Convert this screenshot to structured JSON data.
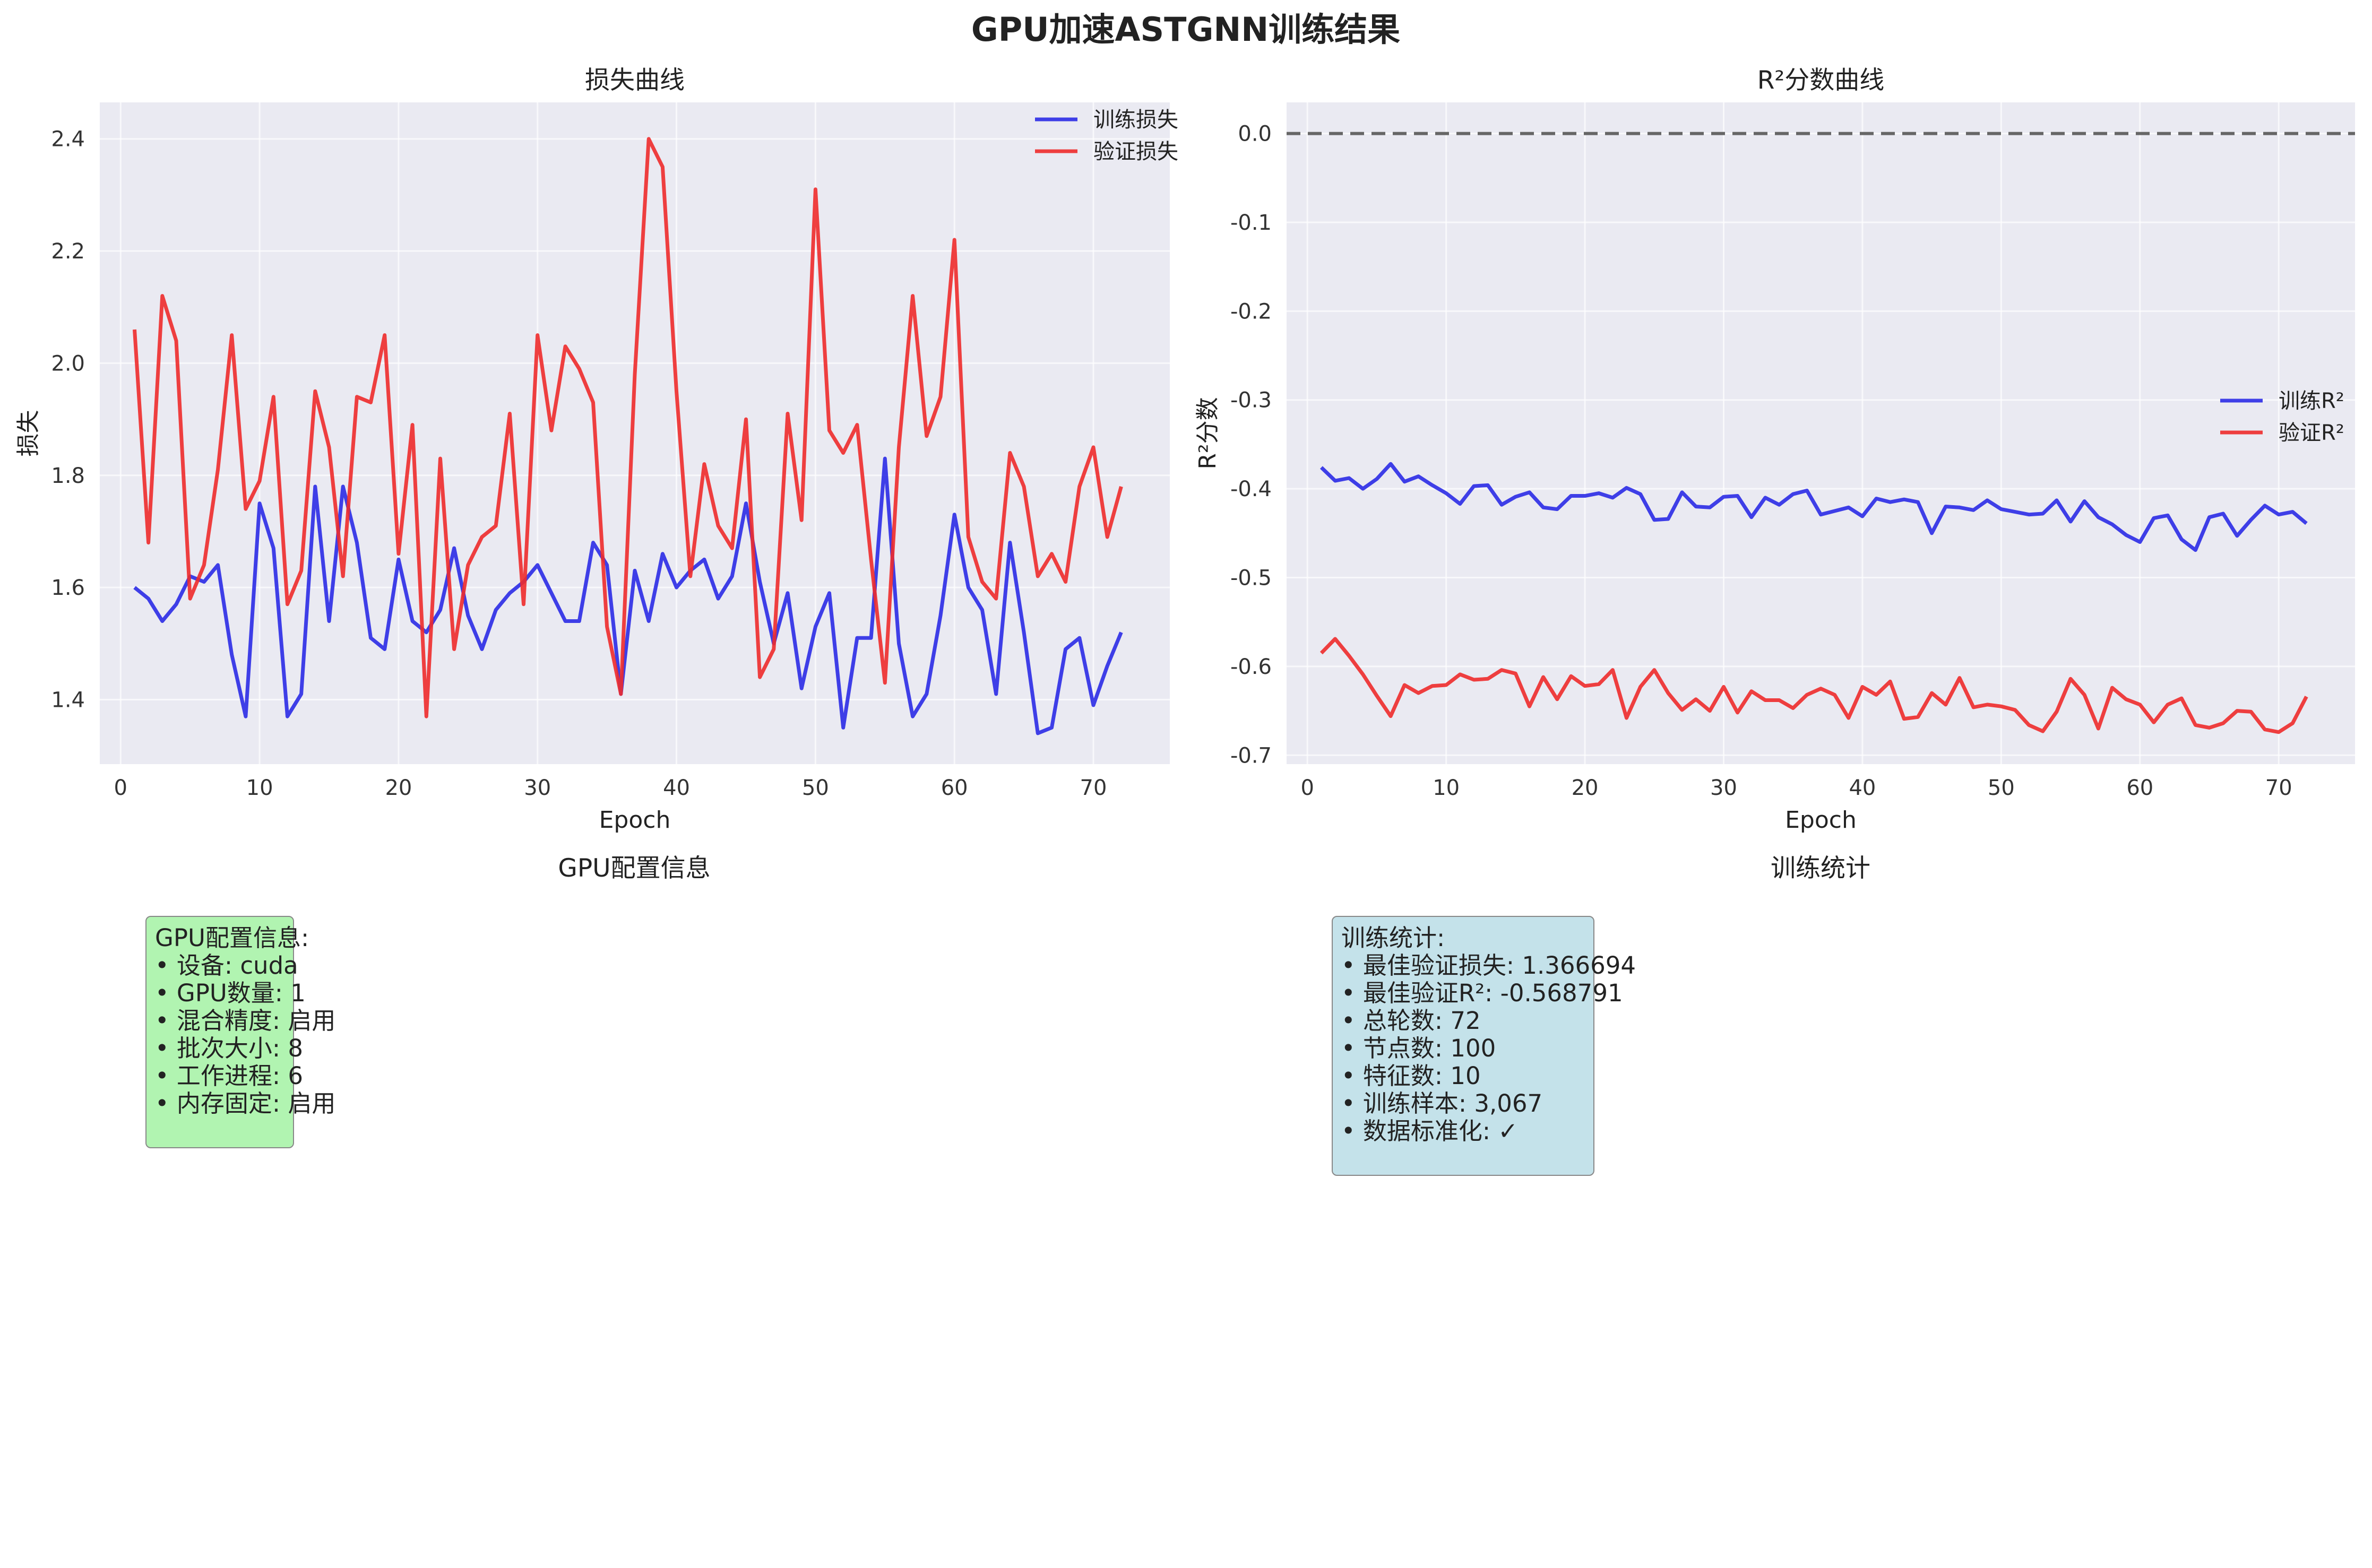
{
  "figure": {
    "title": "GPU加速ASTGNN训练结果"
  },
  "colors": {
    "train": "#2b2be6",
    "val": "#ee2b2b",
    "plot_bg": "#eaeaf2",
    "grid": "#ffffff",
    "zero_line": "#666666",
    "gpu_box_bg": "#b1f4b1",
    "stats_box_bg": "#c4e2ea"
  },
  "gpu_panel": {
    "title": "GPU配置信息",
    "lines": [
      "GPU配置信息:",
      "• 设备: cuda",
      "• GPU数量: 1",
      "• 混合精度: 启用",
      "• 批次大小: 8",
      "• 工作进程: 6",
      "• 内存固定: 启用"
    ]
  },
  "stats_panel": {
    "title": "训练统计",
    "lines": [
      "训练统计:",
      "• 最佳验证损失: 1.366694",
      "• 最佳验证R²: -0.568791",
      "• 总轮数: 72",
      "• 节点数: 100",
      "• 特征数: 10",
      "• 训练样本: 3,067",
      "• 数据标准化: ✓"
    ]
  },
  "chart_data": [
    {
      "type": "line",
      "title": "损失曲线",
      "xlabel": "Epoch",
      "ylabel": "损失",
      "xlim": [
        -1.5,
        75.5
      ],
      "ylim": [
        1.285,
        2.465
      ],
      "xticks": [
        0,
        10,
        20,
        30,
        40,
        50,
        60,
        70
      ],
      "yticks": [
        1.4,
        1.6,
        1.8,
        2.0,
        2.2,
        2.4
      ],
      "ytick_labels": [
        "1.4",
        "1.6",
        "1.8",
        "2.0",
        "2.2",
        "2.4"
      ],
      "grid": true,
      "legend": "top-right",
      "x": [
        1,
        2,
        3,
        4,
        5,
        6,
        7,
        8,
        9,
        10,
        11,
        12,
        13,
        14,
        15,
        16,
        17,
        18,
        19,
        20,
        21,
        22,
        23,
        24,
        25,
        26,
        27,
        28,
        29,
        30,
        31,
        32,
        33,
        34,
        35,
        36,
        37,
        38,
        39,
        40,
        41,
        42,
        43,
        44,
        45,
        46,
        47,
        48,
        49,
        50,
        51,
        52,
        53,
        54,
        55,
        56,
        57,
        58,
        59,
        60,
        61,
        62,
        63,
        64,
        65,
        66,
        67,
        68,
        69,
        70,
        71,
        72
      ],
      "series": [
        {
          "name": "训练损失",
          "color_key": "train",
          "values": [
            1.6,
            1.58,
            1.54,
            1.57,
            1.62,
            1.61,
            1.64,
            1.48,
            1.37,
            1.75,
            1.67,
            1.37,
            1.41,
            1.78,
            1.54,
            1.78,
            1.68,
            1.51,
            1.49,
            1.65,
            1.54,
            1.52,
            1.56,
            1.67,
            1.55,
            1.49,
            1.56,
            1.59,
            1.61,
            1.64,
            1.59,
            1.54,
            1.54,
            1.68,
            1.64,
            1.41,
            1.63,
            1.54,
            1.66,
            1.6,
            1.63,
            1.65,
            1.58,
            1.62,
            1.75,
            1.61,
            1.5,
            1.59,
            1.42,
            1.53,
            1.59,
            1.35,
            1.51,
            1.51,
            1.83,
            1.5,
            1.37,
            1.41,
            1.55,
            1.73,
            1.6,
            1.56,
            1.41,
            1.68,
            1.52,
            1.34,
            1.35,
            1.49,
            1.51,
            1.39,
            1.46,
            1.52
          ]
        },
        {
          "name": "验证损失",
          "color_key": "val",
          "values": [
            2.06,
            1.68,
            2.12,
            2.04,
            1.58,
            1.64,
            1.81,
            2.05,
            1.74,
            1.79,
            1.94,
            1.57,
            1.63,
            1.95,
            1.85,
            1.62,
            1.94,
            1.93,
            2.05,
            1.66,
            1.89,
            1.37,
            1.83,
            1.49,
            1.64,
            1.69,
            1.71,
            1.91,
            1.57,
            2.05,
            1.88,
            2.03,
            1.99,
            1.93,
            1.53,
            1.41,
            1.98,
            2.4,
            2.35,
            1.95,
            1.62,
            1.82,
            1.71,
            1.67,
            1.9,
            1.44,
            1.49,
            1.91,
            1.72,
            2.31,
            1.88,
            1.84,
            1.89,
            1.65,
            1.43,
            1.85,
            2.12,
            1.87,
            1.94,
            2.22,
            1.69,
            1.61,
            1.58,
            1.84,
            1.78,
            1.62,
            1.66,
            1.61,
            1.78,
            1.85,
            1.69,
            1.78
          ]
        }
      ]
    },
    {
      "type": "line",
      "title": "R²分数曲线",
      "xlabel": "Epoch",
      "ylabel": "R²分数",
      "xlim": [
        -1.5,
        75.5
      ],
      "ylim": [
        -0.71,
        0.035
      ],
      "xticks": [
        0,
        10,
        20,
        30,
        40,
        50,
        60,
        70
      ],
      "yticks": [
        0.0,
        -0.1,
        -0.2,
        -0.3,
        -0.4,
        -0.5,
        -0.6,
        -0.7
      ],
      "ytick_labels": [
        "0.0",
        "-0.1",
        "-0.2",
        "-0.3",
        "-0.4",
        "-0.5",
        "-0.6",
        "-0.7"
      ],
      "grid": true,
      "legend": "center-right",
      "reference_line": 0.0,
      "x": [
        1,
        2,
        3,
        4,
        5,
        6,
        7,
        8,
        9,
        10,
        11,
        12,
        13,
        14,
        15,
        16,
        17,
        18,
        19,
        20,
        21,
        22,
        23,
        24,
        25,
        26,
        27,
        28,
        29,
        30,
        31,
        32,
        33,
        34,
        35,
        36,
        37,
        38,
        39,
        40,
        41,
        42,
        43,
        44,
        45,
        46,
        47,
        48,
        49,
        50,
        51,
        52,
        53,
        54,
        55,
        56,
        57,
        58,
        59,
        60,
        61,
        62,
        63,
        64,
        65,
        66,
        67,
        68,
        69,
        70,
        71,
        72
      ],
      "series": [
        {
          "name": "训练R²",
          "color_key": "train",
          "values": [
            -0.376,
            -0.391,
            -0.388,
            -0.4,
            -0.389,
            -0.372,
            -0.392,
            -0.386,
            -0.396,
            -0.405,
            -0.417,
            -0.397,
            -0.396,
            -0.418,
            -0.409,
            -0.404,
            -0.421,
            -0.423,
            -0.408,
            -0.408,
            -0.405,
            -0.41,
            -0.399,
            -0.406,
            -0.435,
            -0.434,
            -0.404,
            -0.42,
            -0.421,
            -0.409,
            -0.408,
            -0.432,
            -0.41,
            -0.418,
            -0.406,
            -0.402,
            -0.429,
            -0.425,
            -0.421,
            -0.431,
            -0.411,
            -0.415,
            -0.412,
            -0.415,
            -0.45,
            -0.42,
            -0.421,
            -0.424,
            -0.413,
            -0.423,
            -0.426,
            -0.429,
            -0.428,
            -0.413,
            -0.437,
            -0.414,
            -0.432,
            -0.44,
            -0.452,
            -0.46,
            -0.433,
            -0.43,
            -0.457,
            -0.469,
            -0.432,
            -0.428,
            -0.453,
            -0.435,
            -0.419,
            -0.429,
            -0.426,
            -0.439
          ]
        },
        {
          "name": "验证R²",
          "color_key": "val",
          "values": [
            -0.585,
            -0.569,
            -0.588,
            -0.609,
            -0.633,
            -0.656,
            -0.621,
            -0.63,
            -0.622,
            -0.621,
            -0.609,
            -0.615,
            -0.614,
            -0.604,
            -0.608,
            -0.645,
            -0.612,
            -0.637,
            -0.611,
            -0.622,
            -0.62,
            -0.604,
            -0.658,
            -0.623,
            -0.604,
            -0.63,
            -0.649,
            -0.637,
            -0.65,
            -0.623,
            -0.652,
            -0.628,
            -0.638,
            -0.638,
            -0.647,
            -0.632,
            -0.625,
            -0.632,
            -0.658,
            -0.623,
            -0.632,
            -0.617,
            -0.659,
            -0.657,
            -0.63,
            -0.643,
            -0.613,
            -0.646,
            -0.643,
            -0.645,
            -0.649,
            -0.666,
            -0.673,
            -0.651,
            -0.614,
            -0.632,
            -0.67,
            -0.624,
            -0.637,
            -0.643,
            -0.663,
            -0.643,
            -0.636,
            -0.666,
            -0.669,
            -0.664,
            -0.65,
            -0.651,
            -0.671,
            -0.674,
            -0.664,
            -0.634
          ]
        }
      ]
    }
  ]
}
